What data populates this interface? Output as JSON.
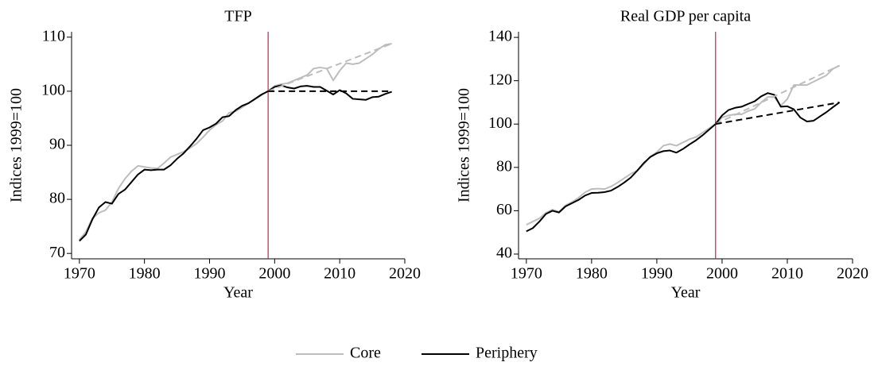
{
  "chart_data": [
    {
      "type": "line",
      "title": "TFP",
      "xlabel": "Year",
      "ylabel": "Indices 1999=100",
      "xlim": [
        1968.8,
        2020
      ],
      "xticks": [
        1970,
        1980,
        1990,
        2000,
        2010,
        2020
      ],
      "ylim": [
        69,
        111
      ],
      "yticks": [
        70,
        80,
        90,
        100,
        110
      ],
      "vline": 1999,
      "vline_color": "#c0395a",
      "x": [
        1970,
        1971,
        1972,
        1973,
        1974,
        1975,
        1976,
        1977,
        1978,
        1979,
        1980,
        1981,
        1982,
        1983,
        1984,
        1985,
        1986,
        1987,
        1988,
        1989,
        1990,
        1991,
        1992,
        1993,
        1994,
        1995,
        1996,
        1997,
        1998,
        1999,
        2000,
        2001,
        2002,
        2003,
        2004,
        2005,
        2006,
        2007,
        2008,
        2009,
        2010,
        2011,
        2012,
        2013,
        2014,
        2015,
        2016,
        2017,
        2018
      ],
      "series": [
        {
          "color": "#bdbdbd",
          "values": [
            72.5,
            74,
            76.5,
            77.5,
            78,
            79.5,
            82,
            83.8,
            85.2,
            86.2,
            86,
            85.8,
            85.7,
            86.7,
            87.8,
            88.3,
            88.8,
            89.5,
            90.3,
            91.5,
            92.8,
            93.8,
            94.5,
            96,
            96.3,
            97,
            97.8,
            98.5,
            99.3,
            100,
            101,
            101.3,
            101.5,
            102,
            102.5,
            103,
            104.2,
            104.4,
            104.2,
            102,
            103.8,
            105.2,
            105,
            105.2,
            106,
            106.8,
            107.8,
            108.6,
            108.8
          ]
        },
        {
          "color": "#000000",
          "values": [
            72.3,
            73.5,
            76.3,
            78.5,
            79.5,
            79.2,
            81,
            81.8,
            83.2,
            84.6,
            85.5,
            85.4,
            85.5,
            85.5,
            86.3,
            87.5,
            88.5,
            89.8,
            91.2,
            92.8,
            93.3,
            94,
            95.2,
            95.4,
            96.5,
            97.3,
            97.8,
            98.6,
            99.4,
            100,
            100.8,
            101.1,
            100.7,
            100.5,
            100.9,
            101,
            100.8,
            100.8,
            100.1,
            99.4,
            100.2,
            99.6,
            98.6,
            98.5,
            98.4,
            98.9,
            99,
            99.5,
            99.9
          ]
        },
        {
          "color": "#bdbdbd",
          "dashed": true,
          "x": [
            1999,
            2018
          ],
          "values": [
            100,
            108.8
          ]
        },
        {
          "color": "#000000",
          "dashed": true,
          "x": [
            1999,
            2018
          ],
          "values": [
            100,
            100
          ]
        }
      ]
    },
    {
      "type": "line",
      "title": "Real GDP per capita",
      "xlabel": "Year",
      "ylabel": "Indices 1999=100",
      "xlim": [
        1968.8,
        2020
      ],
      "xticks": [
        1970,
        1980,
        1990,
        2000,
        2010,
        2020
      ],
      "ylim": [
        37.8,
        142.6
      ],
      "yticks": [
        40,
        60,
        80,
        100,
        120,
        140
      ],
      "vline": 1999,
      "vline_color": "#c0395a",
      "x": [
        1970,
        1971,
        1972,
        1973,
        1974,
        1975,
        1976,
        1977,
        1978,
        1979,
        1980,
        1981,
        1982,
        1983,
        1984,
        1985,
        1986,
        1987,
        1988,
        1989,
        1990,
        1991,
        1992,
        1993,
        1994,
        1995,
        1996,
        1997,
        1998,
        1999,
        2000,
        2001,
        2002,
        2003,
        2004,
        2005,
        2006,
        2007,
        2008,
        2009,
        2010,
        2011,
        2012,
        2013,
        2014,
        2015,
        2016,
        2017,
        2018
      ],
      "series": [
        {
          "color": "#bdbdbd",
          "values": [
            53.5,
            55,
            56.5,
            59,
            60.5,
            59.5,
            62.5,
            64,
            66,
            68.5,
            70,
            70.2,
            70,
            71.2,
            73,
            75,
            77,
            78.5,
            81.5,
            85,
            87,
            90,
            90.8,
            90,
            91.5,
            93,
            94,
            96,
            98,
            100,
            103,
            104,
            104.5,
            104.5,
            106,
            107,
            110,
            112.5,
            112.5,
            108.5,
            111.5,
            118,
            118,
            118,
            119.5,
            121,
            122.5,
            125.5,
            127
          ]
        },
        {
          "color": "#000000",
          "values": [
            50.5,
            52,
            55,
            58.5,
            60,
            59.2,
            62,
            63.5,
            65,
            67,
            68.2,
            68.3,
            68.6,
            69.3,
            71,
            73,
            75.3,
            78.5,
            82,
            84.8,
            86.5,
            87.5,
            87.8,
            86.8,
            88.5,
            90.6,
            92.5,
            94.8,
            97.4,
            100,
            104,
            106.5,
            107.5,
            108,
            109.3,
            110.5,
            112.8,
            114.3,
            113.5,
            108,
            108.2,
            106.8,
            103,
            101.2,
            101.5,
            103.5,
            105.5,
            107.8,
            110
          ]
        },
        {
          "color": "#bdbdbd",
          "dashed": true,
          "x": [
            1999,
            2018
          ],
          "values": [
            100,
            127
          ]
        },
        {
          "color": "#000000",
          "dashed": true,
          "x": [
            1999,
            2018
          ],
          "values": [
            100,
            110
          ]
        }
      ]
    }
  ],
  "legend": [
    {
      "name": "Core",
      "color": "#bdbdbd"
    },
    {
      "name": "Periphery",
      "color": "#000000"
    }
  ]
}
